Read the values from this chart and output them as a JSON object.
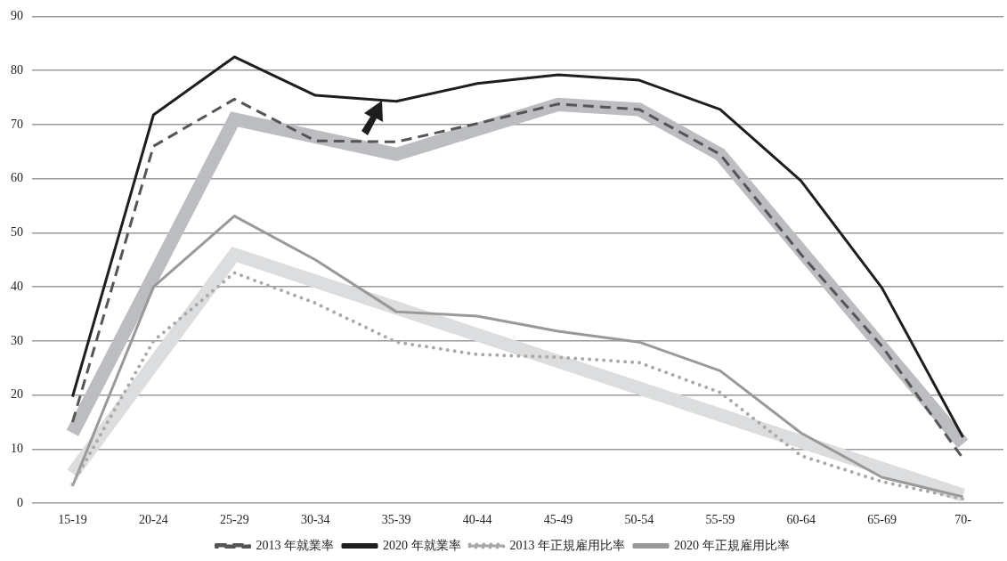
{
  "chart_data": {
    "type": "line",
    "categories": [
      "15-19",
      "20-24",
      "25-29",
      "30-34",
      "35-39",
      "40-44",
      "45-49",
      "50-54",
      "55-59",
      "60-64",
      "65-69",
      "70-"
    ],
    "ylim": [
      0,
      90
    ],
    "yticks": [
      0,
      10,
      20,
      30,
      40,
      50,
      60,
      70,
      80,
      90
    ],
    "grid": "y",
    "legend": "bottom",
    "marker": "none",
    "series": [
      {
        "color": "#bcbdc1",
        "values": [
          13,
          null,
          71,
          null,
          64.5,
          null,
          73.7,
          72.8,
          64.5,
          null,
          null,
          11
        ]
      },
      {
        "color": "#dcdddf",
        "values": [
          5.5,
          null,
          46,
          null,
          null,
          null,
          null,
          null,
          null,
          null,
          null,
          1.5
        ]
      },
      {
        "name": "2013 年就業率",
        "color": "#555555",
        "line_style": "dashed",
        "values": [
          15,
          66,
          74.7,
          67,
          66.8,
          70.2,
          73.8,
          72.8,
          64.5,
          46,
          29,
          8.3
        ]
      },
      {
        "name": "2020 年就業率",
        "color": "#1e1e1e",
        "line_style": "solid",
        "values": [
          19.7,
          71.8,
          82.5,
          75.4,
          74.3,
          77.6,
          79.2,
          78.2,
          72.8,
          59.6,
          39.8,
          12.2
        ]
      },
      {
        "name": "2013 年正規雇用比率",
        "color": "#a9a9a9",
        "line_style": "dotted",
        "values": [
          3.5,
          30,
          42.6,
          37,
          29.8,
          27.5,
          27,
          26,
          20.5,
          8.8,
          4,
          0.8
        ]
      },
      {
        "name": "2020 年正規雇用比率",
        "color": "#999999",
        "line_style": "solid",
        "values": [
          3.2,
          40,
          53.1,
          45,
          35.4,
          34.6,
          31.8,
          29.8,
          24.5,
          13,
          4.8,
          1.2
        ]
      }
    ]
  }
}
